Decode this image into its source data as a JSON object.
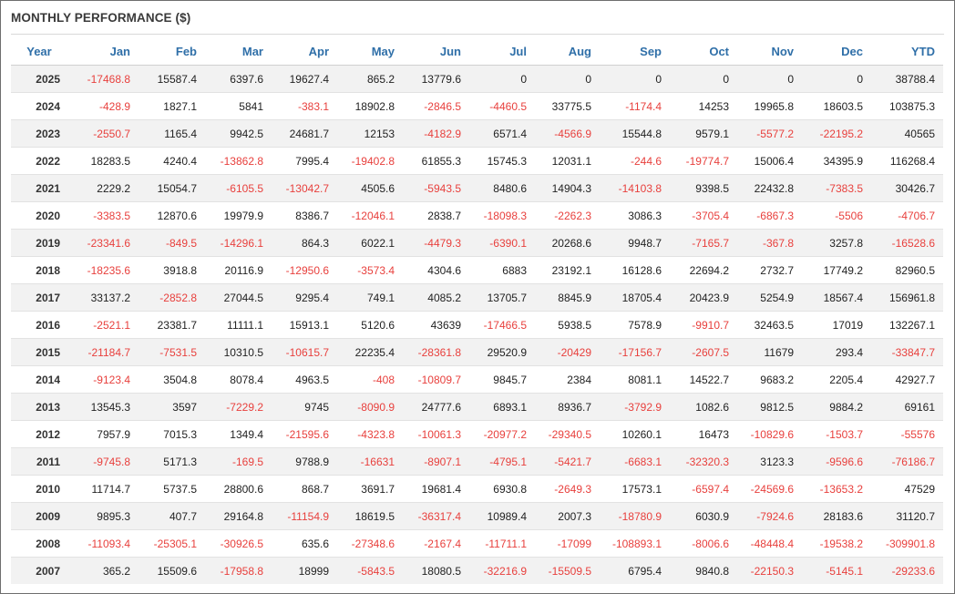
{
  "panel": {
    "title": "MONTHLY PERFORMANCE ($)"
  },
  "colors": {
    "negative": "#e8403d",
    "header": "#2f6fa8"
  },
  "table": {
    "columns": [
      "Year",
      "Jan",
      "Feb",
      "Mar",
      "Apr",
      "May",
      "Jun",
      "Jul",
      "Aug",
      "Sep",
      "Oct",
      "Nov",
      "Dec",
      "YTD"
    ],
    "rows": [
      [
        "2025",
        "-17468.8",
        "15587.4",
        "6397.6",
        "19627.4",
        "865.2",
        "13779.6",
        "0",
        "0",
        "0",
        "0",
        "0",
        "0",
        "38788.4"
      ],
      [
        "2024",
        "-428.9",
        "1827.1",
        "5841",
        "-383.1",
        "18902.8",
        "-2846.5",
        "-4460.5",
        "33775.5",
        "-1174.4",
        "14253",
        "19965.8",
        "18603.5",
        "103875.3"
      ],
      [
        "2023",
        "-2550.7",
        "1165.4",
        "9942.5",
        "24681.7",
        "12153",
        "-4182.9",
        "6571.4",
        "-4566.9",
        "15544.8",
        "9579.1",
        "-5577.2",
        "-22195.2",
        "40565"
      ],
      [
        "2022",
        "18283.5",
        "4240.4",
        "-13862.8",
        "7995.4",
        "-19402.8",
        "61855.3",
        "15745.3",
        "12031.1",
        "-244.6",
        "-19774.7",
        "15006.4",
        "34395.9",
        "116268.4"
      ],
      [
        "2021",
        "2229.2",
        "15054.7",
        "-6105.5",
        "-13042.7",
        "4505.6",
        "-5943.5",
        "8480.6",
        "14904.3",
        "-14103.8",
        "9398.5",
        "22432.8",
        "-7383.5",
        "30426.7"
      ],
      [
        "2020",
        "-3383.5",
        "12870.6",
        "19979.9",
        "8386.7",
        "-12046.1",
        "2838.7",
        "-18098.3",
        "-2262.3",
        "3086.3",
        "-3705.4",
        "-6867.3",
        "-5506",
        "-4706.7"
      ],
      [
        "2019",
        "-23341.6",
        "-849.5",
        "-14296.1",
        "864.3",
        "6022.1",
        "-4479.3",
        "-6390.1",
        "20268.6",
        "9948.7",
        "-7165.7",
        "-367.8",
        "3257.8",
        "-16528.6"
      ],
      [
        "2018",
        "-18235.6",
        "3918.8",
        "20116.9",
        "-12950.6",
        "-3573.4",
        "4304.6",
        "6883",
        "23192.1",
        "16128.6",
        "22694.2",
        "2732.7",
        "17749.2",
        "82960.5"
      ],
      [
        "2017",
        "33137.2",
        "-2852.8",
        "27044.5",
        "9295.4",
        "749.1",
        "4085.2",
        "13705.7",
        "8845.9",
        "18705.4",
        "20423.9",
        "5254.9",
        "18567.4",
        "156961.8"
      ],
      [
        "2016",
        "-2521.1",
        "23381.7",
        "11111.1",
        "15913.1",
        "5120.6",
        "43639",
        "-17466.5",
        "5938.5",
        "7578.9",
        "-9910.7",
        "32463.5",
        "17019",
        "132267.1"
      ],
      [
        "2015",
        "-21184.7",
        "-7531.5",
        "10310.5",
        "-10615.7",
        "22235.4",
        "-28361.8",
        "29520.9",
        "-20429",
        "-17156.7",
        "-2607.5",
        "11679",
        "293.4",
        "-33847.7"
      ],
      [
        "2014",
        "-9123.4",
        "3504.8",
        "8078.4",
        "4963.5",
        "-408",
        "-10809.7",
        "9845.7",
        "2384",
        "8081.1",
        "14522.7",
        "9683.2",
        "2205.4",
        "42927.7"
      ],
      [
        "2013",
        "13545.3",
        "3597",
        "-7229.2",
        "9745",
        "-8090.9",
        "24777.6",
        "6893.1",
        "8936.7",
        "-3792.9",
        "1082.6",
        "9812.5",
        "9884.2",
        "69161"
      ],
      [
        "2012",
        "7957.9",
        "7015.3",
        "1349.4",
        "-21595.6",
        "-4323.8",
        "-10061.3",
        "-20977.2",
        "-29340.5",
        "10260.1",
        "16473",
        "-10829.6",
        "-1503.7",
        "-55576"
      ],
      [
        "2011",
        "-9745.8",
        "5171.3",
        "-169.5",
        "9788.9",
        "-16631",
        "-8907.1",
        "-4795.1",
        "-5421.7",
        "-6683.1",
        "-32320.3",
        "3123.3",
        "-9596.6",
        "-76186.7"
      ],
      [
        "2010",
        "11714.7",
        "5737.5",
        "28800.6",
        "868.7",
        "3691.7",
        "19681.4",
        "6930.8",
        "-2649.3",
        "17573.1",
        "-6597.4",
        "-24569.6",
        "-13653.2",
        "47529"
      ],
      [
        "2009",
        "9895.3",
        "407.7",
        "29164.8",
        "-11154.9",
        "18619.5",
        "-36317.4",
        "10989.4",
        "2007.3",
        "-18780.9",
        "6030.9",
        "-7924.6",
        "28183.6",
        "31120.7"
      ],
      [
        "2008",
        "-11093.4",
        "-25305.1",
        "-30926.5",
        "635.6",
        "-27348.6",
        "-2167.4",
        "-11711.1",
        "-17099",
        "-108893.1",
        "-8006.6",
        "-48448.4",
        "-19538.2",
        "-309901.8"
      ],
      [
        "2007",
        "365.2",
        "15509.6",
        "-17958.8",
        "18999",
        "-5843.5",
        "18080.5",
        "-32216.9",
        "-15509.5",
        "6795.4",
        "9840.8",
        "-22150.3",
        "-5145.1",
        "-29233.6"
      ]
    ]
  }
}
